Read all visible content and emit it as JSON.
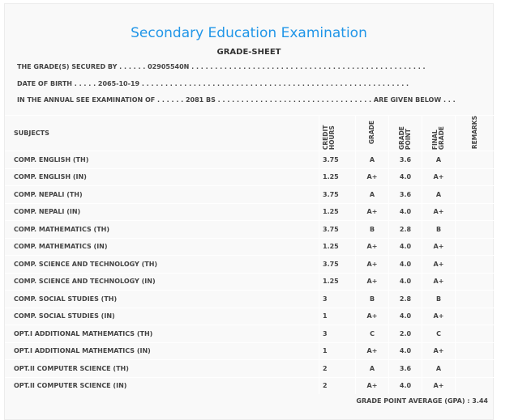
{
  "header": {
    "title": "Secondary Education Examination",
    "subtitle": "GRADE-SHEET"
  },
  "info": {
    "line1": "THE GRADE(S) SECURED BY . . . . . . 02905540N . . . . . . . . . . . . . . . . . . . . . . . . . . . . . . . . . . . . . . . . . . . . . . . . . .",
    "line2": "DATE OF BIRTH . . . . . 2065-10-19 . . . . . . . . . . . . . . . . . . . . . . . . . . . . . . . . . . . . . . . . . . . . . . . . . . . . . . . . .",
    "line3": "IN THE ANNUAL SEE EXAMINATION OF . . . . . . 2081 BS . . . . . . . . . . . . . . . . . . . . . . . . . . . . . . . . . ARE GIVEN BELOW . . ."
  },
  "table": {
    "headers": [
      "SUBJECTS",
      "CREDIT HOURS",
      "GRADE",
      "GRADE POINT",
      "FINAL GRADE",
      "REMARKS"
    ],
    "rows": [
      [
        "COMP. ENGLISH (TH)",
        "3.75",
        "A",
        "3.6",
        "A",
        ""
      ],
      [
        "COMP. ENGLISH (IN)",
        "1.25",
        "A+",
        "4.0",
        "A+",
        ""
      ],
      [
        "COMP. NEPALI (TH)",
        "3.75",
        "A",
        "3.6",
        "A",
        ""
      ],
      [
        "COMP. NEPALI (IN)",
        "1.25",
        "A+",
        "4.0",
        "A+",
        ""
      ],
      [
        "COMP. MATHEMATICS (TH)",
        "3.75",
        "B",
        "2.8",
        "B",
        ""
      ],
      [
        "COMP. MATHEMATICS (IN)",
        "1.25",
        "A+",
        "4.0",
        "A+",
        ""
      ],
      [
        "COMP. SCIENCE AND TECHNOLOGY (TH)",
        "3.75",
        "A+",
        "4.0",
        "A+",
        ""
      ],
      [
        "COMP. SCIENCE AND TECHNOLOGY (IN)",
        "1.25",
        "A+",
        "4.0",
        "A+",
        ""
      ],
      [
        "COMP. SOCIAL STUDIES (TH)",
        "3",
        "B",
        "2.8",
        "B",
        ""
      ],
      [
        "COMP. SOCIAL STUDIES (IN)",
        "1",
        "A+",
        "4.0",
        "A+",
        ""
      ],
      [
        "OPT.I ADDITIONAL MATHEMATICS (TH)",
        "3",
        "C",
        "2.0",
        "C",
        ""
      ],
      [
        "OPT.I ADDITIONAL MATHEMATICS (IN)",
        "1",
        "A+",
        "4.0",
        "A+",
        ""
      ],
      [
        "OPT.II COMPUTER SCIENCE (TH)",
        "2",
        "A",
        "3.6",
        "A",
        ""
      ],
      [
        "OPT.II COMPUTER SCIENCE (IN)",
        "2",
        "A+",
        "4.0",
        "A+",
        ""
      ]
    ]
  },
  "gpa": "GRADE POINT AVERAGE (GPA) : 3.44",
  "colors": {
    "title": "#2196e8",
    "panel": "#f9f9f9"
  }
}
